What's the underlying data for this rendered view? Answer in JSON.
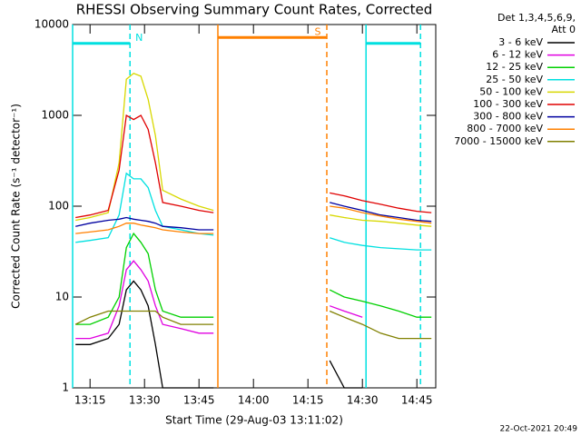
{
  "chart_data": {
    "type": "line",
    "title": "RHESSI Observing Summary Count Rates, Corrected",
    "xlabel": "Start Time (29-Aug-03 13:11:02)",
    "ylabel": "Corrected Count Rate (s⁻¹ detector⁻¹)",
    "footer": "22-Oct-2021 20:49",
    "legend_header": [
      "Det 1,3,4,5,6,9,",
      "Att 0"
    ],
    "log_y": true,
    "xlim": [
      790.2,
      890.2
    ],
    "ylim": [
      1,
      10000
    ],
    "yticks": [
      1,
      10,
      100,
      1000,
      10000
    ],
    "xticks": [
      {
        "value": 795,
        "label": "13:15"
      },
      {
        "value": 810,
        "label": "13:30"
      },
      {
        "value": 825,
        "label": "13:45"
      },
      {
        "value": 840,
        "label": "14:00"
      },
      {
        "value": 855,
        "label": "14:15"
      },
      {
        "value": 870,
        "label": "14:30"
      },
      {
        "value": 885,
        "label": "14:45"
      }
    ],
    "x": [
      791,
      795,
      800,
      803,
      805,
      807,
      809,
      811,
      813,
      815,
      820,
      825,
      829,
      845,
      861,
      865,
      870,
      875,
      880,
      885,
      889
    ],
    "series": [
      {
        "name": "3 - 6 keV",
        "color": "#000000",
        "values": [
          3,
          3,
          3.5,
          5,
          12,
          15,
          12,
          8,
          3,
          1,
          1,
          1,
          1,
          null,
          2,
          1,
          1,
          null,
          null,
          null,
          null
        ]
      },
      {
        "name": "6 - 12 keV",
        "color": "#e000e0",
        "values": [
          3.5,
          3.5,
          4,
          8,
          20,
          25,
          20,
          15,
          8,
          5,
          4.5,
          4,
          4,
          null,
          8,
          7,
          6,
          null,
          null,
          null,
          null
        ]
      },
      {
        "name": "12 - 25 keV",
        "color": "#00d000",
        "values": [
          5,
          5,
          6,
          10,
          35,
          50,
          40,
          30,
          12,
          7,
          6,
          6,
          6,
          null,
          12,
          10,
          9,
          8,
          7,
          6,
          6
        ]
      },
      {
        "name": "25 - 50 keV",
        "color": "#00e0e0",
        "values": [
          40,
          42,
          45,
          80,
          230,
          200,
          200,
          160,
          90,
          60,
          55,
          50,
          48,
          null,
          45,
          40,
          37,
          35,
          34,
          33,
          33
        ]
      },
      {
        "name": "50 - 100 keV",
        "color": "#d8d800",
        "values": [
          70,
          75,
          85,
          300,
          2500,
          2900,
          2700,
          1500,
          600,
          150,
          120,
          100,
          90,
          null,
          80,
          75,
          70,
          68,
          65,
          62,
          60
        ]
      },
      {
        "name": "100 - 300 keV",
        "color": "#e00000",
        "values": [
          75,
          80,
          90,
          250,
          1000,
          900,
          1000,
          700,
          300,
          110,
          100,
          90,
          85,
          null,
          140,
          130,
          115,
          105,
          95,
          88,
          85
        ]
      },
      {
        "name": "300 - 800 keV",
        "color": "#0000a0",
        "values": [
          60,
          65,
          70,
          72,
          75,
          72,
          70,
          68,
          65,
          60,
          58,
          55,
          55,
          null,
          110,
          100,
          90,
          80,
          75,
          70,
          68
        ]
      },
      {
        "name": "800 - 7000 keV",
        "color": "#ff8000",
        "values": [
          50,
          52,
          55,
          60,
          65,
          65,
          62,
          60,
          58,
          55,
          52,
          50,
          50,
          null,
          100,
          95,
          85,
          78,
          72,
          68,
          65
        ]
      },
      {
        "name": "7000 - 15000 keV",
        "color": "#808000",
        "values": [
          5,
          6,
          7,
          7,
          7,
          7,
          7,
          7,
          7,
          6,
          5,
          5,
          5,
          null,
          7,
          6,
          5,
          4,
          3.5,
          3.5,
          3.5
        ]
      }
    ],
    "vlines": [
      {
        "x": 790.2,
        "color": "#00e0e0",
        "dashed": false
      },
      {
        "x": 806,
        "color": "#00e0e0",
        "dashed": true
      },
      {
        "x": 830.2,
        "color": "#ff8000",
        "dashed": false
      },
      {
        "x": 860.2,
        "color": "#ff8000",
        "dashed": true
      },
      {
        "x": 871,
        "color": "#00e0e0",
        "dashed": false
      },
      {
        "x": 886,
        "color": "#00e0e0",
        "dashed": true
      }
    ],
    "flag_bars": [
      {
        "x": [
          790.2,
          806
        ],
        "y": 6200,
        "color": "#00e0e0",
        "label": "N"
      },
      {
        "x": [
          830.2,
          860.2
        ],
        "y": 7200,
        "color": "#ff8000",
        "label": "S"
      },
      {
        "x": [
          871,
          886
        ],
        "y": 6200,
        "color": "#00e0e0"
      }
    ]
  }
}
